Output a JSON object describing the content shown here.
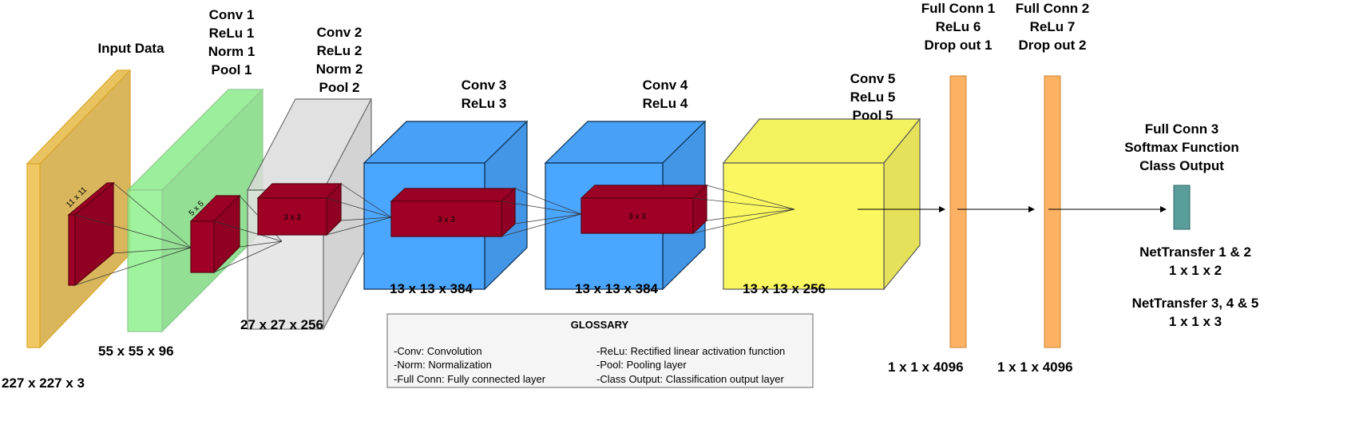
{
  "layers": [
    {
      "label": [
        "Input Data"
      ],
      "dims": "227 x 227 x 3",
      "color": "#f0c65c"
    },
    {
      "label": [
        "Conv 1",
        "ReLu 1",
        "Norm 1",
        "Pool 1"
      ],
      "dims": "55 x 55 x 96",
      "color": "#8ff28f"
    },
    {
      "label": [
        "Conv 2",
        "ReLu 2",
        "Norm 2",
        "Pool 2"
      ],
      "dims": "27 x 27 x 256",
      "color": "#e3e3e3"
    },
    {
      "label": [
        "Conv 3",
        "ReLu 3"
      ],
      "dims": "13 x 13 x 384",
      "color": "#4aa6ff"
    },
    {
      "label": [
        "Conv 4",
        "ReLu 4"
      ],
      "dims": "13 x 13 x 384",
      "color": "#4aa6ff"
    },
    {
      "label": [
        "Conv 5",
        "ReLu 5",
        "Pool 5"
      ],
      "dims": "13 x 13 x 256",
      "color": "#fbf74c"
    },
    {
      "label": [
        "Full Conn 1",
        "ReLu 6",
        "Drop out 1"
      ],
      "dims": "1 x 1 x 4096",
      "color": "#fdb163"
    },
    {
      "label": [
        "Full Conn 2",
        "ReLu 7",
        "Drop out 2"
      ],
      "dims": "1 x 1 x 4096",
      "color": "#fdb163"
    },
    {
      "label": [
        "Full Conn 3",
        "Softmax Function",
        "Class Output"
      ],
      "color": "#5a9e9c"
    }
  ],
  "kernels": [
    "11 x 11",
    "5 x 5",
    "3 x 3",
    "3 x 3",
    "3 x 3"
  ],
  "kernel_color": "#a00026",
  "outputs": [
    {
      "name": "NetTransfer 1 & 2",
      "dims": "1 x 1 x 2"
    },
    {
      "name": "NetTransfer 3, 4 & 5",
      "dims": "1 x 1 x 3"
    }
  ],
  "glossary": {
    "title": "GLOSSARY",
    "left": [
      "-Conv: Convolution",
      "-Norm: Normalization",
      "-Full Conn: Fully connected layer"
    ],
    "right": [
      "-ReLu: Rectified linear activation function",
      "-Pool: Pooling layer",
      "-Class Output: Classification output layer"
    ]
  }
}
